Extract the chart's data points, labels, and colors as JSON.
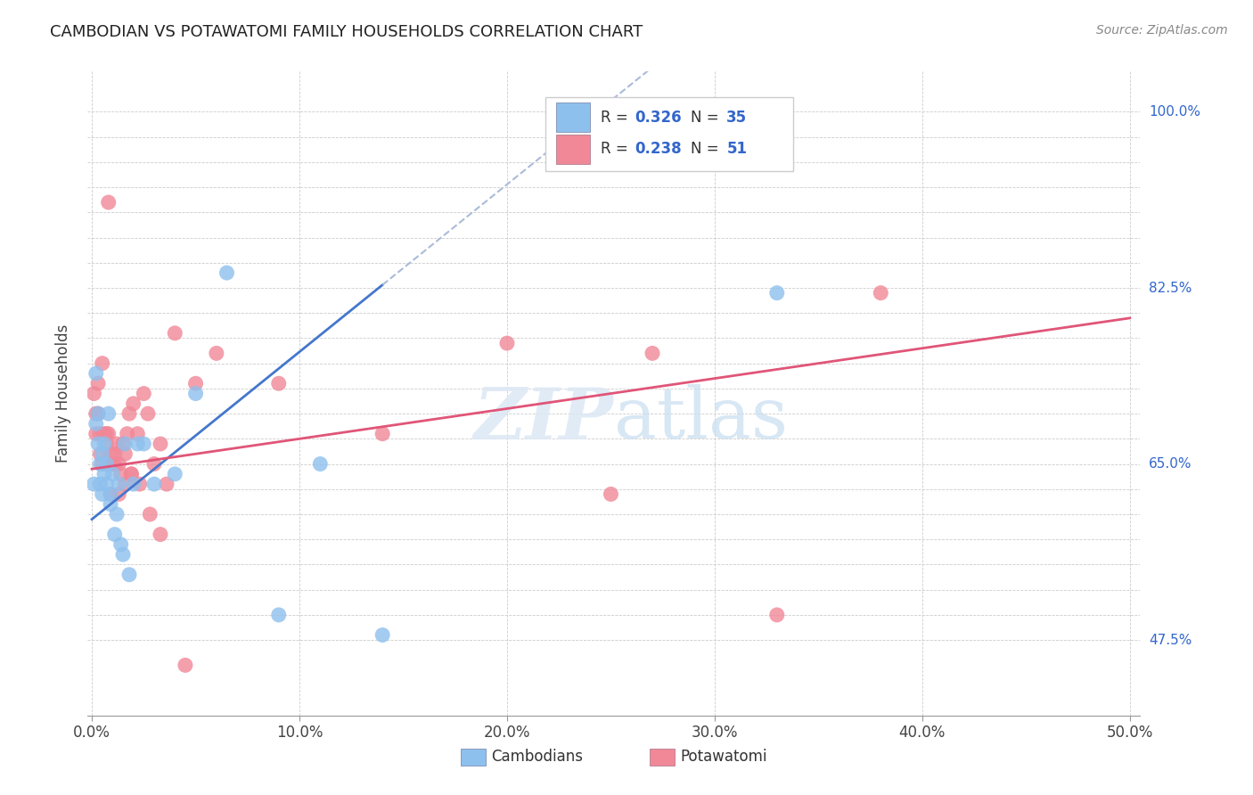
{
  "title": "CAMBODIAN VS POTAWATOMI FAMILY HOUSEHOLDS CORRELATION CHART",
  "source": "Source: ZipAtlas.com",
  "ylabel": "Family Households",
  "xlim": [
    0.0,
    0.5
  ],
  "ylim": [
    0.4,
    1.04
  ],
  "grid_color": "#cccccc",
  "background_color": "#ffffff",
  "blue_color": "#8EC0EE",
  "pink_color": "#F08898",
  "blue_line_color": "#4477CC",
  "pink_line_color": "#E05578",
  "dashed_line_color": "#AABBD8",
  "legend_R_blue": "0.326",
  "legend_N_blue": "35",
  "legend_R_pink": "0.238",
  "legend_N_pink": "51",
  "ytick_labels": {
    "0.475": "47.5%",
    "0.65": "65.0%",
    "0.825": "82.5%",
    "1.00": "100.0%"
  },
  "watermark": "ZIPatlas",
  "cambodian_x": [
    0.001,
    0.002,
    0.002,
    0.003,
    0.003,
    0.004,
    0.004,
    0.005,
    0.005,
    0.006,
    0.006,
    0.007,
    0.007,
    0.008,
    0.009,
    0.009,
    0.01,
    0.011,
    0.012,
    0.013,
    0.014,
    0.015,
    0.016,
    0.018,
    0.02,
    0.022,
    0.025,
    0.03,
    0.04,
    0.05,
    0.065,
    0.09,
    0.11,
    0.14,
    0.33
  ],
  "cambodian_y": [
    0.63,
    0.69,
    0.74,
    0.7,
    0.67,
    0.65,
    0.63,
    0.66,
    0.62,
    0.64,
    0.67,
    0.65,
    0.63,
    0.7,
    0.61,
    0.62,
    0.64,
    0.58,
    0.6,
    0.63,
    0.57,
    0.56,
    0.67,
    0.54,
    0.63,
    0.67,
    0.67,
    0.63,
    0.64,
    0.72,
    0.84,
    0.5,
    0.65,
    0.48,
    0.82
  ],
  "potawatomi_x": [
    0.001,
    0.002,
    0.002,
    0.003,
    0.003,
    0.004,
    0.004,
    0.005,
    0.005,
    0.006,
    0.007,
    0.007,
    0.008,
    0.008,
    0.009,
    0.01,
    0.011,
    0.012,
    0.013,
    0.014,
    0.015,
    0.016,
    0.017,
    0.018,
    0.019,
    0.02,
    0.022,
    0.025,
    0.027,
    0.03,
    0.033,
    0.036,
    0.04,
    0.05,
    0.06,
    0.09,
    0.14,
    0.2,
    0.25,
    0.27,
    0.33,
    0.38,
    0.009,
    0.011,
    0.013,
    0.016,
    0.019,
    0.023,
    0.028,
    0.033,
    0.045
  ],
  "potawatomi_y": [
    0.72,
    0.7,
    0.68,
    0.7,
    0.73,
    0.68,
    0.66,
    0.65,
    0.75,
    0.68,
    0.68,
    0.67,
    0.68,
    0.91,
    0.66,
    0.65,
    0.66,
    0.67,
    0.65,
    0.64,
    0.67,
    0.63,
    0.68,
    0.7,
    0.64,
    0.71,
    0.68,
    0.72,
    0.7,
    0.65,
    0.67,
    0.63,
    0.78,
    0.73,
    0.76,
    0.73,
    0.68,
    0.77,
    0.62,
    0.76,
    0.5,
    0.82,
    0.62,
    0.65,
    0.62,
    0.66,
    0.64,
    0.63,
    0.6,
    0.58,
    0.45
  ],
  "blue_line_x_start": 0.0,
  "blue_line_x_solid_end": 0.14,
  "blue_line_x_end": 0.5,
  "pink_line_x_start": 0.0,
  "pink_line_x_end": 0.5,
  "blue_line_y_at_0": 0.595,
  "blue_line_y_at_014": 0.828,
  "pink_line_y_at_0": 0.645,
  "pink_line_y_at_050": 0.795
}
